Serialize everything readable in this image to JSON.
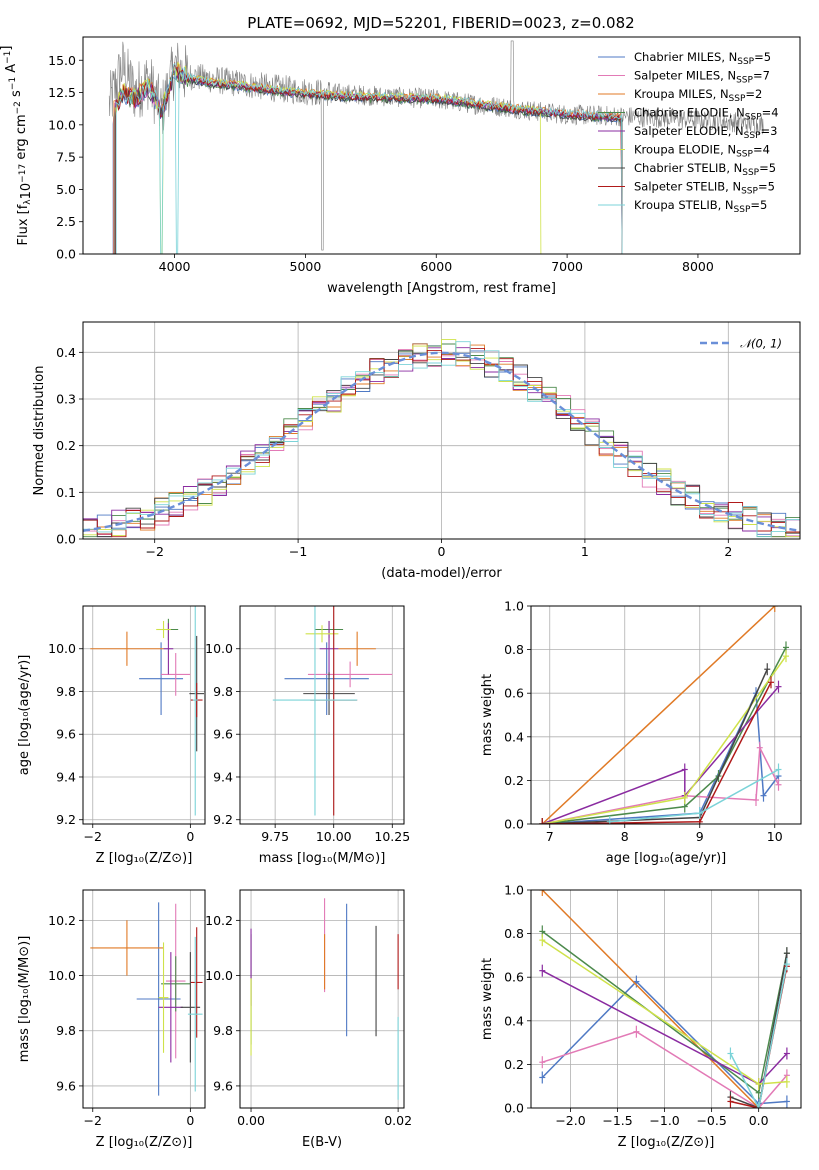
{
  "title": "PLATE=0692, MJD=52201, FIBERID=0023, z=0.082",
  "legend_entries": [
    {
      "label": "Chabrier MILES, N",
      "sub": "SSP",
      "suffix": "=5",
      "color": "#4f79c4"
    },
    {
      "label": "Salpeter MILES, N",
      "sub": "SSP",
      "suffix": "=7",
      "color": "#e27ab6"
    },
    {
      "label": "Kroupa MILES, N",
      "sub": "SSP",
      "suffix": "=2",
      "color": "#e07a26"
    },
    {
      "label": "Chabrier ELODIE, N",
      "sub": "SSP",
      "suffix": "=4",
      "color": "#4c8a4c"
    },
    {
      "label": "Salpeter ELODIE, N",
      "sub": "SSP",
      "suffix": "=3",
      "color": "#8a2ba0"
    },
    {
      "label": "Kroupa ELODIE, N",
      "sub": "SSP",
      "suffix": "=4",
      "color": "#cfe24a"
    },
    {
      "label": "Chabrier STELIB, N",
      "sub": "SSP",
      "suffix": "=5",
      "color": "#444444"
    },
    {
      "label": "Salpeter STELIB, N",
      "sub": "SSP",
      "suffix": "=5",
      "color": "#b01a1a"
    },
    {
      "label": "Kroupa STELIB, N",
      "sub": "SSP",
      "suffix": "=5",
      "color": "#7bd3d8"
    }
  ],
  "chart_data": [
    {
      "type": "line",
      "name": "spectrum",
      "xlabel": "wavelength [Angstrom, rest frame]",
      "ylabel_parts": {
        "a": "Flux [f",
        "b": "λ",
        "c": "10",
        "d": "−17",
        "e": " erg cm",
        "f": "−2",
        "g": " s",
        "h": "−1",
        "i": " A",
        "j": "−1",
        "k": "]"
      },
      "xlim": [
        3300,
        8780
      ],
      "ylim": [
        0,
        16.8
      ],
      "xticks": [
        4000,
        5000,
        6000,
        7000,
        8000
      ],
      "yticks": [
        "0.0",
        "2.5",
        "5.0",
        "7.5",
        "10.0",
        "12.5",
        "15.0"
      ],
      "data_x": [
        3500,
        3600,
        3700,
        3800,
        3900,
        4000,
        4100,
        4300,
        4500,
        4800,
        5000,
        5300,
        5600,
        6000,
        6300,
        6600,
        6800,
        7000,
        7300,
        7600,
        8000,
        8300,
        8500
      ],
      "data_y": [
        11.5,
        14.5,
        12.5,
        13.5,
        11.0,
        14.5,
        13.8,
        13.5,
        13.2,
        12.8,
        12.6,
        12.4,
        12.2,
        12.0,
        11.6,
        11.3,
        11.0,
        10.8,
        10.7,
        10.6,
        10.4,
        10.2,
        10.0
      ],
      "model_y": [
        10.2,
        12.5,
        12.0,
        13.0,
        11.0,
        14.2,
        13.6,
        13.2,
        13.0,
        12.6,
        12.4,
        12.2,
        12.1,
        12.0,
        11.6,
        11.2,
        11.0,
        10.8,
        10.6,
        10.4,
        10.2,
        10.0,
        9.8
      ]
    },
    {
      "type": "line",
      "name": "residuals",
      "xlabel": "(data-model)/error",
      "ylabel": "Normed distribution",
      "xlim": [
        -2.5,
        2.5
      ],
      "ylim": [
        0,
        0.465
      ],
      "xticks": [
        "−2",
        "−1",
        "0",
        "1",
        "2"
      ],
      "yticks": [
        "0.0",
        "0.1",
        "0.2",
        "0.3",
        "0.4"
      ],
      "legend": "𝒩(0, 1)"
    },
    {
      "type": "scatter",
      "name": "age-vs-Z",
      "xlabel": "Z [log₁₀(Z/Z⊙)]",
      "ylabel": "age  [log₁₀(age/yr)]",
      "xlim": [
        -2.2,
        0.3
      ],
      "ylim": [
        9.18,
        10.2
      ],
      "xticks": [
        "−2",
        "0"
      ],
      "yticks": [
        "9.2",
        "9.4",
        "9.6",
        "9.8",
        "10.0"
      ]
    },
    {
      "type": "scatter",
      "name": "age-vs-mass",
      "xlabel": "mass [log₁₀(M/M⊙)]",
      "xlim": [
        9.6,
        10.3
      ],
      "ylim": [
        9.18,
        10.2
      ],
      "xticks": [
        "9.75",
        "10.00",
        "10.25"
      ],
      "yticks": [
        "9.2",
        "9.4",
        "9.6",
        "9.8",
        "10.0"
      ]
    },
    {
      "type": "line",
      "name": "mass-weight-vs-age",
      "xlabel": "age  [log₁₀(age/yr)]",
      "ylabel": "mass weight",
      "xlim": [
        6.75,
        10.35
      ],
      "ylim": [
        0,
        1.0
      ],
      "xticks": [
        "7",
        "8",
        "9",
        "10"
      ],
      "yticks": [
        "0.0",
        "0.2",
        "0.4",
        "0.6",
        "0.8",
        "1.0"
      ]
    },
    {
      "type": "scatter",
      "name": "mass-vs-Z",
      "xlabel": "Z [log₁₀(Z/Z⊙)]",
      "ylabel": "mass [log₁₀(M/M⊙)]",
      "xlim": [
        -2.2,
        0.3
      ],
      "ylim": [
        9.52,
        10.31
      ],
      "xticks": [
        "−2",
        "0"
      ],
      "yticks": [
        "9.6",
        "9.8",
        "10.0",
        "10.2"
      ]
    },
    {
      "type": "scatter",
      "name": "mass-vs-EBV",
      "xlabel": "E(B-V)",
      "xlim": [
        -0.0015,
        0.0208
      ],
      "ylim": [
        9.52,
        10.31
      ],
      "xticks": [
        "0.00",
        "0.02"
      ],
      "yticks": [
        "9.6",
        "9.8",
        "10.0",
        "10.2"
      ]
    },
    {
      "type": "line",
      "name": "mass-weight-vs-Z",
      "xlabel": "Z [log₁₀(Z/Z⊙)]",
      "ylabel": "mass weight",
      "xlim": [
        -2.42,
        0.45
      ],
      "ylim": [
        0,
        1.0
      ],
      "xticks": [
        "−2.0",
        "−1.5",
        "−1.0",
        "−0.5",
        "0.0"
      ],
      "yticks": [
        "0.0",
        "0.2",
        "0.4",
        "0.6",
        "0.8",
        "1.0"
      ]
    }
  ]
}
